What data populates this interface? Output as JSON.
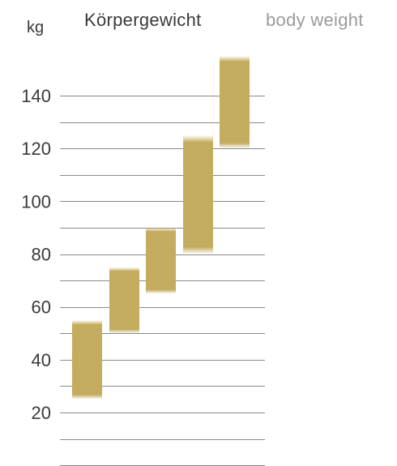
{
  "chart_data": {
    "type": "bar",
    "title": "Körpergewicht",
    "subtitle": "body weight",
    "ylabel": "kg",
    "ylim": [
      0,
      155
    ],
    "yticks": [
      20,
      40,
      60,
      80,
      100,
      120,
      140
    ],
    "grid": true,
    "ranges": [
      {
        "low": 25,
        "high": 55
      },
      {
        "low": 50,
        "high": 75
      },
      {
        "low": 65,
        "high": 90
      },
      {
        "low": 80,
        "high": 125
      },
      {
        "low": 120,
        "high": 155
      }
    ],
    "bar_color": "#c4ac5e"
  }
}
